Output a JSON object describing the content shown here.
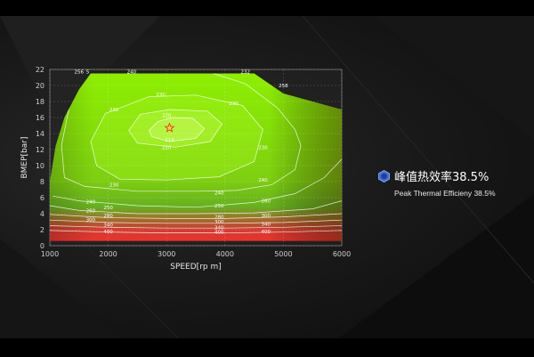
{
  "chart_data": {
    "type": "contour",
    "xlabel": "SPEED[rp m]",
    "ylabel": "BMEP[bar]",
    "xlim": [
      1000,
      6000
    ],
    "ylim": [
      0,
      22
    ],
    "x_ticks": [
      1000,
      2000,
      3000,
      4000,
      5000,
      6000
    ],
    "y_ticks": [
      0,
      2,
      4,
      6,
      8,
      10,
      12,
      14,
      16,
      18,
      20,
      22
    ],
    "grid": true,
    "colormap": [
      "#8ef000",
      "#7ed010",
      "#66b020",
      "#c84030",
      "#ff2a2a"
    ],
    "envelope": [
      [
        1000,
        0
      ],
      [
        1000,
        8
      ],
      [
        1100,
        12.5
      ],
      [
        1250,
        16
      ],
      [
        1500,
        19.5
      ],
      [
        1700,
        21.5
      ],
      [
        4500,
        21.5
      ],
      [
        5000,
        19
      ],
      [
        6000,
        17
      ],
      [
        6000,
        0.6
      ],
      [
        1000,
        0.6
      ]
    ],
    "contours": [
      {
        "label": "219",
        "points": [
          [
            2700,
            14.4
          ],
          [
            2850,
            15.5
          ],
          [
            3100,
            16.0
          ],
          [
            3450,
            15.9
          ],
          [
            3650,
            14.6
          ],
          [
            3500,
            13.4
          ],
          [
            3050,
            13.0
          ],
          [
            2750,
            13.6
          ],
          [
            2700,
            14.4
          ]
        ]
      },
      {
        "label": "220",
        "points": [
          [
            2350,
            14.4
          ],
          [
            2550,
            16.4
          ],
          [
            3050,
            17.0
          ],
          [
            3700,
            16.8
          ],
          [
            3950,
            15.2
          ],
          [
            3750,
            13.0
          ],
          [
            3150,
            12.3
          ],
          [
            2500,
            12.8
          ],
          [
            2350,
            14.4
          ]
        ]
      },
      {
        "label": "230",
        "points": [
          [
            1700,
            13
          ],
          [
            1950,
            16.5
          ],
          [
            2700,
            18.6
          ],
          [
            3500,
            18.8
          ],
          [
            4300,
            17.5
          ],
          [
            4650,
            14.5
          ],
          [
            4500,
            10.5
          ],
          [
            3900,
            8.6
          ],
          [
            3000,
            8.2
          ],
          [
            2200,
            8.3
          ],
          [
            1800,
            10
          ],
          [
            1700,
            13
          ]
        ]
      },
      {
        "label": "240",
        "points": [
          [
            1450,
            20.5
          ],
          [
            1350,
            18
          ],
          [
            1200,
            12.5
          ],
          [
            1250,
            8.5
          ],
          [
            1600,
            7.4
          ],
          [
            2500,
            6.8
          ],
          [
            3500,
            6.8
          ],
          [
            4200,
            6.9
          ],
          [
            4800,
            7.6
          ],
          [
            5200,
            9.5
          ],
          [
            5300,
            12.5
          ],
          [
            5200,
            14.5
          ],
          [
            4900,
            17.2
          ],
          [
            4350,
            20.2
          ],
          [
            3800,
            21.5
          ]
        ]
      },
      {
        "label": "250",
        "points": [
          [
            1050,
            6.2
          ],
          [
            1500,
            5.6
          ],
          [
            2500,
            5.0
          ],
          [
            3500,
            4.8
          ],
          [
            4500,
            5.4
          ],
          [
            5200,
            6.5
          ],
          [
            5700,
            8.5
          ],
          [
            6000,
            10.8
          ]
        ]
      },
      {
        "label": "260",
        "points": [
          [
            1000,
            5.0
          ],
          [
            1500,
            4.4
          ],
          [
            2500,
            4.0
          ],
          [
            3500,
            4.0
          ],
          [
            4500,
            4.1
          ],
          [
            5500,
            4.6
          ],
          [
            6000,
            5.6
          ]
        ]
      },
      {
        "label": "280",
        "points": [
          [
            1000,
            3.9
          ],
          [
            2000,
            3.5
          ],
          [
            3000,
            3.4
          ],
          [
            4000,
            3.4
          ],
          [
            5000,
            3.6
          ],
          [
            6000,
            4.0
          ]
        ]
      },
      {
        "label": "300",
        "points": [
          [
            1000,
            3.2
          ],
          [
            2000,
            2.9
          ],
          [
            3000,
            2.8
          ],
          [
            4000,
            2.8
          ],
          [
            5000,
            2.9
          ],
          [
            6000,
            3.2
          ]
        ]
      },
      {
        "label": "340",
        "points": [
          [
            1000,
            2.5
          ],
          [
            2000,
            2.3
          ],
          [
            3000,
            2.2
          ],
          [
            4000,
            2.2
          ],
          [
            5000,
            2.3
          ],
          [
            6000,
            2.5
          ]
        ]
      },
      {
        "label": "400",
        "points": [
          [
            1000,
            1.9
          ],
          [
            2000,
            1.7
          ],
          [
            3000,
            1.6
          ],
          [
            4000,
            1.6
          ],
          [
            5000,
            1.7
          ],
          [
            6000,
            1.9
          ]
        ]
      }
    ],
    "contour_labels": [
      {
        "text": "219",
        "x": 3050,
        "y": 13.2,
        "color": "#ff5a1a"
      },
      {
        "text": "220",
        "x": 3000,
        "y": 16.3
      },
      {
        "text": "220",
        "x": 3000,
        "y": 12.3
      },
      {
        "text": "230",
        "x": 2900,
        "y": 18.9
      },
      {
        "text": "230",
        "x": 4150,
        "y": 17.8
      },
      {
        "text": "230",
        "x": 2100,
        "y": 17.0
      },
      {
        "text": "230",
        "x": 4650,
        "y": 12.3
      },
      {
        "text": "230",
        "x": 2100,
        "y": 7.6
      },
      {
        "text": "240",
        "x": 4650,
        "y": 8.2
      },
      {
        "text": "240",
        "x": 1700,
        "y": 5.5
      },
      {
        "text": "240",
        "x": 3900,
        "y": 6.6
      },
      {
        "text": "250",
        "x": 2000,
        "y": 4.8
      },
      {
        "text": "250",
        "x": 3900,
        "y": 5.0
      },
      {
        "text": "260",
        "x": 4700,
        "y": 5.6
      },
      {
        "text": "260",
        "x": 1700,
        "y": 4.4
      },
      {
        "text": "280",
        "x": 2000,
        "y": 3.8
      },
      {
        "text": "280",
        "x": 3900,
        "y": 3.6
      },
      {
        "text": "300",
        "x": 1700,
        "y": 3.3
      },
      {
        "text": "300",
        "x": 3900,
        "y": 3.0
      },
      {
        "text": "300",
        "x": 4700,
        "y": 3.8
      },
      {
        "text": "340",
        "x": 2000,
        "y": 2.6
      },
      {
        "text": "340",
        "x": 3900,
        "y": 2.3
      },
      {
        "text": "340",
        "x": 4700,
        "y": 2.7
      },
      {
        "text": "400",
        "x": 2000,
        "y": 1.8
      },
      {
        "text": "400",
        "x": 3900,
        "y": 1.7
      },
      {
        "text": "400",
        "x": 4700,
        "y": 1.8
      }
    ],
    "top_labels": [
      {
        "text": "256",
        "x": 1500,
        "y": 21.7
      },
      {
        "text": "5",
        "x": 1650,
        "y": 21.7
      },
      {
        "text": "240",
        "x": 2400,
        "y": 21.7
      },
      {
        "text": "232",
        "x": 4350,
        "y": 21.7
      },
      {
        "text": "258",
        "x": 5000,
        "y": 20.0
      }
    ],
    "marker": {
      "x": 3050,
      "y": 14.7,
      "shape": "star"
    }
  },
  "highlight": {
    "icon": "hexagon-icon",
    "icon_color": "#3a6fd8",
    "title": "峰值热效率38.5%",
    "subtitle": "Peak Thermal Efficieny 38.5%"
  }
}
